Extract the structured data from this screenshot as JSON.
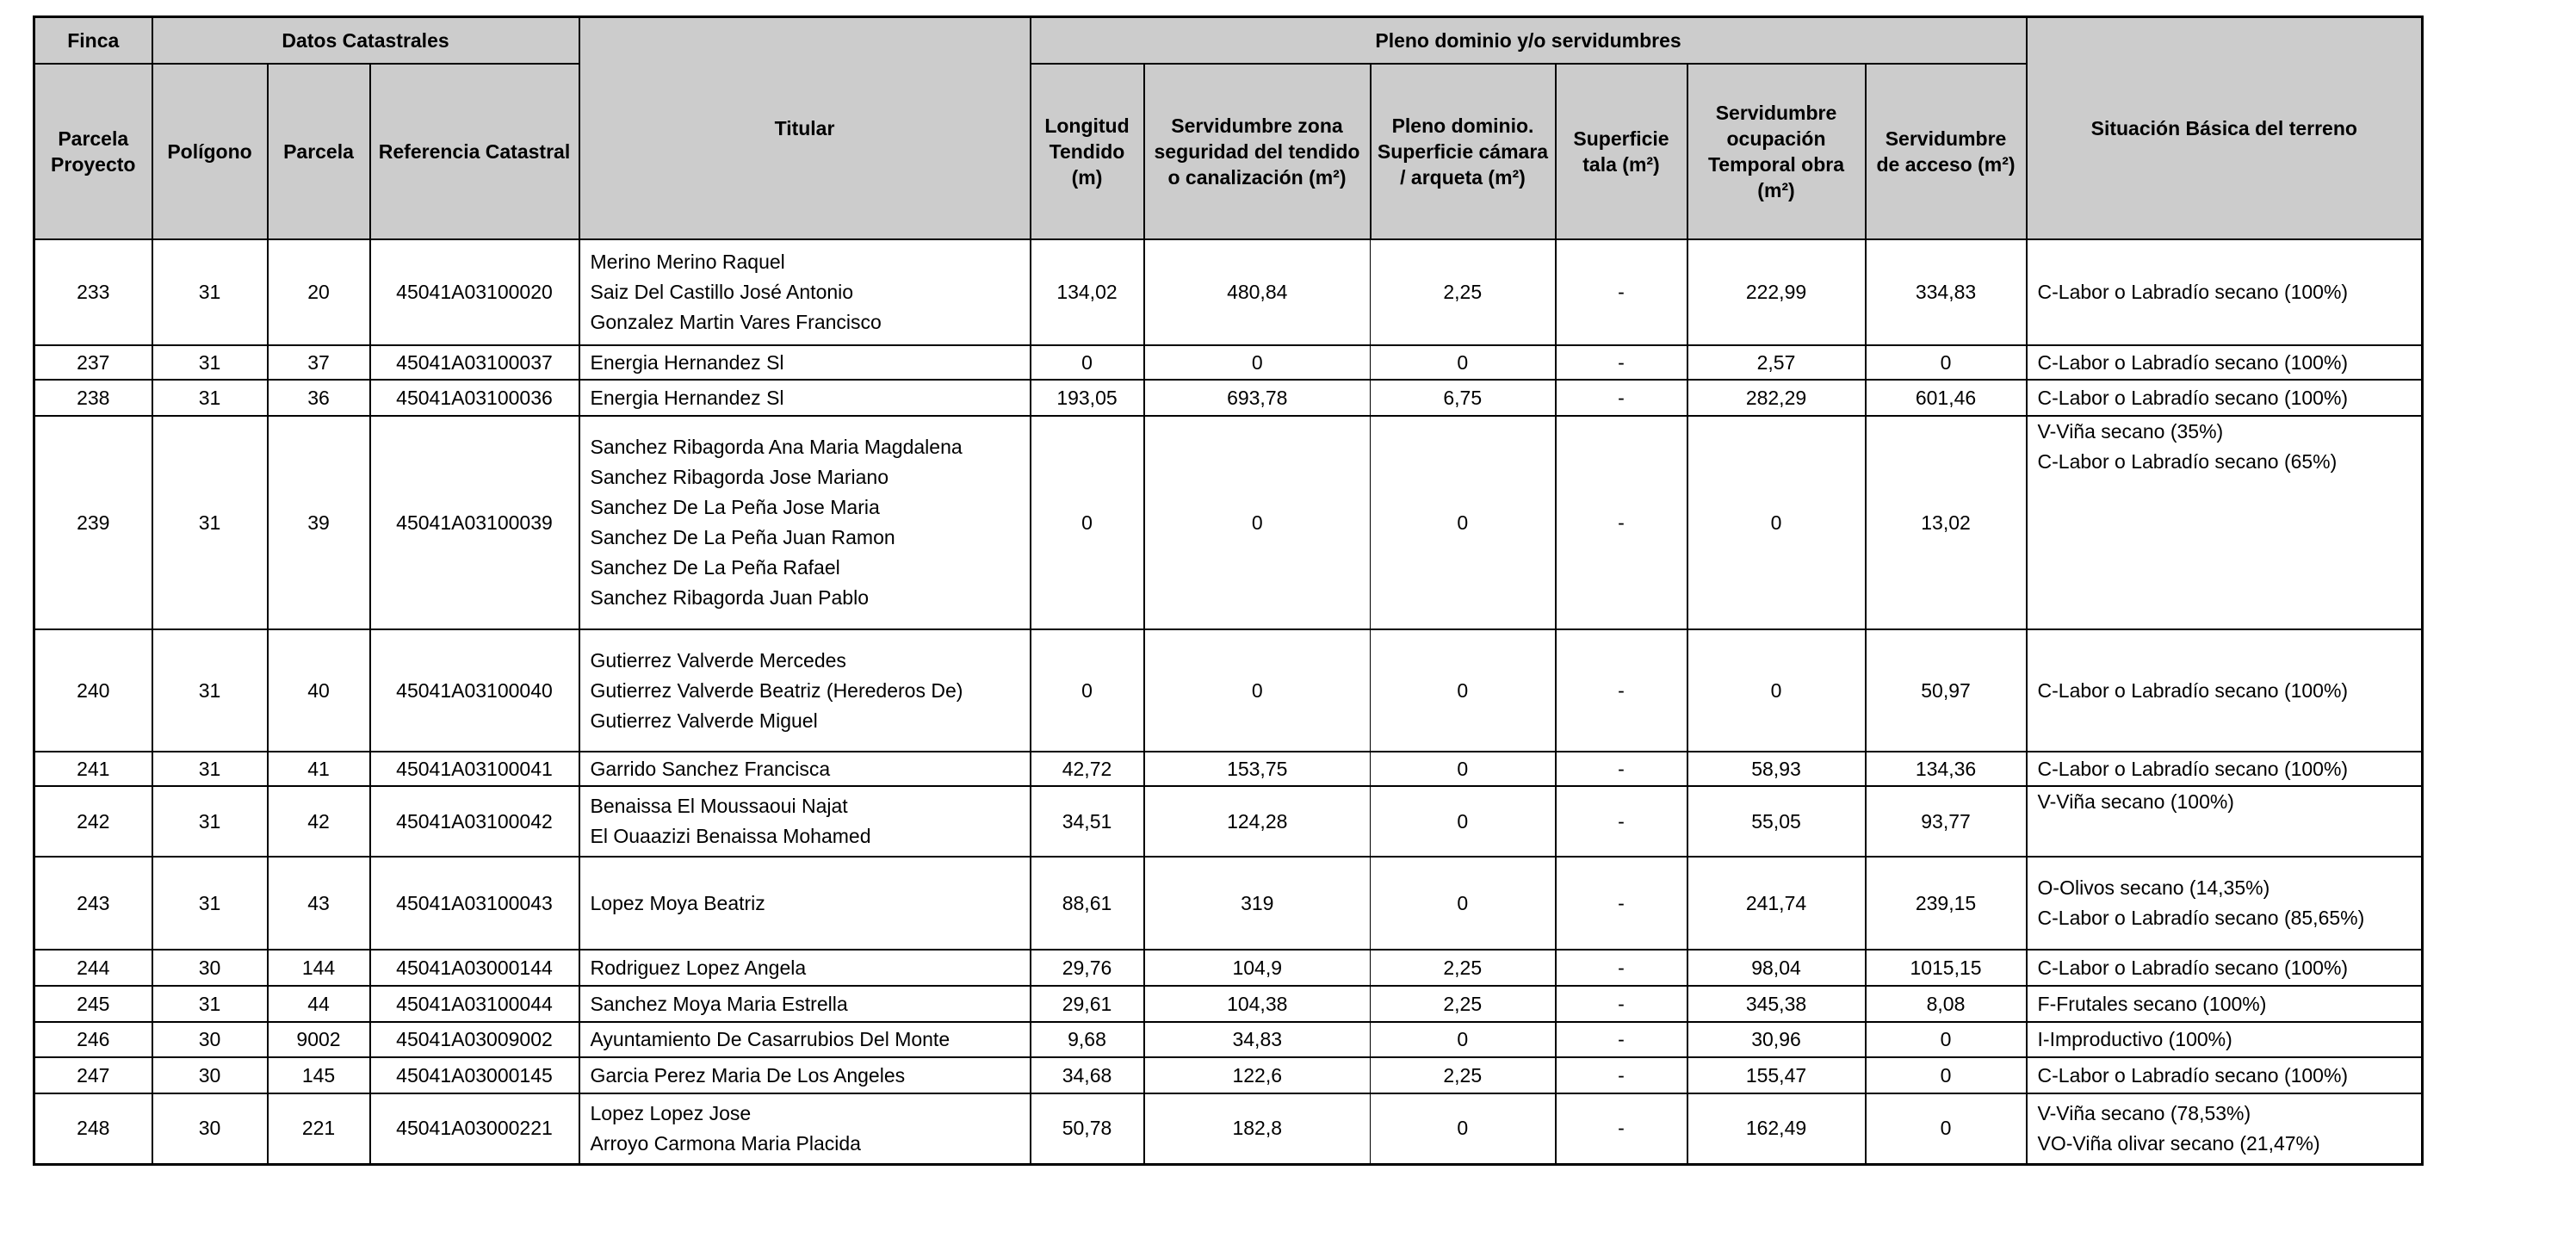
{
  "header": {
    "finca": "Finca",
    "datos_catastrales": "Datos Catastrales",
    "titular": "Titular",
    "pleno_dominio": "Pleno dominio y/o servidumbres",
    "situacion": "Situación Básica del terreno",
    "parcela_proyecto": "Parcela Proyecto",
    "poligono": "Polígono",
    "parcela": "Parcela",
    "referencia": "Referencia Catastral",
    "longitud": "Longitud Tendido (m)",
    "serv_zona": "Servidumbre zona seguridad del tendido o canalización (m²)",
    "pleno_sup": "Pleno dominio. Superficie cámara / arqueta (m²)",
    "sup_tala": "Superficie tala (m²)",
    "serv_ocup": "Servidumbre ocupación Temporal obra (m²)",
    "serv_acceso": "Servidumbre de acceso (m²)"
  },
  "rows": [
    {
      "parcela_proyecto": "233",
      "poligono": "31",
      "parcela": "20",
      "referencia": "45041A03100020",
      "titular": [
        "Merino Merino Raquel",
        "Saiz Del Castillo José Antonio",
        "Gonzalez Martin Vares Francisco"
      ],
      "longitud": "134,02",
      "serv_zona": "480,84",
      "pleno_sup": "2,25",
      "sup_tala": "-",
      "serv_ocup": "222,99",
      "serv_acceso": "334,83",
      "situacion": [
        "C-Labor o Labradío secano (100%)"
      ]
    },
    {
      "parcela_proyecto": "237",
      "poligono": "31",
      "parcela": "37",
      "referencia": "45041A03100037",
      "titular": [
        "Energia Hernandez Sl"
      ],
      "longitud": "0",
      "serv_zona": "0",
      "pleno_sup": "0",
      "sup_tala": "-",
      "serv_ocup": "2,57",
      "serv_acceso": "0",
      "situacion": [
        "C-Labor o Labradío secano (100%)"
      ]
    },
    {
      "parcela_proyecto": "238",
      "poligono": "31",
      "parcela": "36",
      "referencia": "45041A03100036",
      "titular": [
        "Energia Hernandez Sl"
      ],
      "longitud": "193,05",
      "serv_zona": "693,78",
      "pleno_sup": "6,75",
      "sup_tala": "-",
      "serv_ocup": "282,29",
      "serv_acceso": "601,46",
      "situacion": [
        "C-Labor o Labradío secano (100%)"
      ]
    },
    {
      "parcela_proyecto": "239",
      "poligono": "31",
      "parcela": "39",
      "referencia": "45041A03100039",
      "titular": [
        "Sanchez Ribagorda Ana Maria Magdalena",
        "Sanchez Ribagorda Jose Mariano",
        "Sanchez De La Peña Jose Maria",
        "Sanchez De La Peña Juan Ramon",
        "Sanchez De La Peña Rafael",
        "Sanchez Ribagorda Juan Pablo"
      ],
      "longitud": "0",
      "serv_zona": "0",
      "pleno_sup": "0",
      "sup_tala": "-",
      "serv_ocup": "0",
      "serv_acceso": "13,02",
      "situacion": [
        "V-Viña secano (35%)",
        "C-Labor o Labradío secano (65%)"
      ]
    },
    {
      "parcela_proyecto": "240",
      "poligono": "31",
      "parcela": "40",
      "referencia": "45041A03100040",
      "titular": [
        "Gutierrez Valverde Mercedes",
        "Gutierrez Valverde Beatriz (Herederos De)",
        "Gutierrez Valverde Miguel"
      ],
      "longitud": "0",
      "serv_zona": "0",
      "pleno_sup": "0",
      "sup_tala": "-",
      "serv_ocup": "0",
      "serv_acceso": "50,97",
      "situacion": [
        "C-Labor o Labradío secano (100%)"
      ]
    },
    {
      "parcela_proyecto": "241",
      "poligono": "31",
      "parcela": "41",
      "referencia": "45041A03100041",
      "titular": [
        "Garrido Sanchez Francisca"
      ],
      "longitud": "42,72",
      "serv_zona": "153,75",
      "pleno_sup": "0",
      "sup_tala": "-",
      "serv_ocup": "58,93",
      "serv_acceso": "134,36",
      "situacion": [
        "C-Labor o Labradío secano (100%)"
      ]
    },
    {
      "parcela_proyecto": "242",
      "poligono": "31",
      "parcela": "42",
      "referencia": "45041A03100042",
      "titular": [
        "Benaissa El Moussaoui Najat",
        "El Ouaazizi Benaissa Mohamed"
      ],
      "longitud": "34,51",
      "serv_zona": "124,28",
      "pleno_sup": "0",
      "sup_tala": "-",
      "serv_ocup": "55,05",
      "serv_acceso": "93,77",
      "situacion": [
        "V-Viña secano (100%)"
      ]
    },
    {
      "parcela_proyecto": "243",
      "poligono": "31",
      "parcela": "43",
      "referencia": "45041A03100043",
      "titular": [
        "Lopez Moya Beatriz"
      ],
      "longitud": "88,61",
      "serv_zona": "319",
      "pleno_sup": "0",
      "sup_tala": "-",
      "serv_ocup": "241,74",
      "serv_acceso": "239,15",
      "situacion": [
        "O-Olivos secano (14,35%)",
        "C-Labor o Labradío secano (85,65%)"
      ]
    },
    {
      "parcela_proyecto": "244",
      "poligono": "30",
      "parcela": "144",
      "referencia": "45041A03000144",
      "titular": [
        "Rodriguez Lopez Angela"
      ],
      "longitud": "29,76",
      "serv_zona": "104,9",
      "pleno_sup": "2,25",
      "sup_tala": "-",
      "serv_ocup": "98,04",
      "serv_acceso": "1015,15",
      "situacion": [
        "C-Labor o Labradío secano (100%)"
      ]
    },
    {
      "parcela_proyecto": "245",
      "poligono": "31",
      "parcela": "44",
      "referencia": "45041A03100044",
      "titular": [
        "Sanchez Moya Maria Estrella"
      ],
      "longitud": "29,61",
      "serv_zona": "104,38",
      "pleno_sup": "2,25",
      "sup_tala": "-",
      "serv_ocup": "345,38",
      "serv_acceso": "8,08",
      "situacion": [
        "F-Frutales secano (100%)"
      ]
    },
    {
      "parcela_proyecto": "246",
      "poligono": "30",
      "parcela": "9002",
      "referencia": "45041A03009002",
      "titular": [
        "Ayuntamiento De Casarrubios Del Monte"
      ],
      "longitud": "9,68",
      "serv_zona": "34,83",
      "pleno_sup": "0",
      "sup_tala": "-",
      "serv_ocup": "30,96",
      "serv_acceso": "0",
      "situacion": [
        "I-Improductivo (100%)"
      ]
    },
    {
      "parcela_proyecto": "247",
      "poligono": "30",
      "parcela": "145",
      "referencia": "45041A03000145",
      "titular": [
        "Garcia Perez Maria De Los Angeles"
      ],
      "longitud": "34,68",
      "serv_zona": "122,6",
      "pleno_sup": "2,25",
      "sup_tala": "-",
      "serv_ocup": "155,47",
      "serv_acceso": "0",
      "situacion": [
        "C-Labor o Labradío secano (100%)"
      ]
    },
    {
      "parcela_proyecto": "248",
      "poligono": "30",
      "parcela": "221",
      "referencia": "45041A03000221",
      "titular": [
        "Lopez Lopez Jose",
        "Arroyo Carmona Maria Placida"
      ],
      "longitud": "50,78",
      "serv_zona": "182,8",
      "pleno_sup": "0",
      "sup_tala": "-",
      "serv_ocup": "162,49",
      "serv_acceso": "0",
      "situacion": [
        "V-Viña secano (78,53%)",
        "VO-Viña olivar secano (21,47%)"
      ]
    }
  ]
}
